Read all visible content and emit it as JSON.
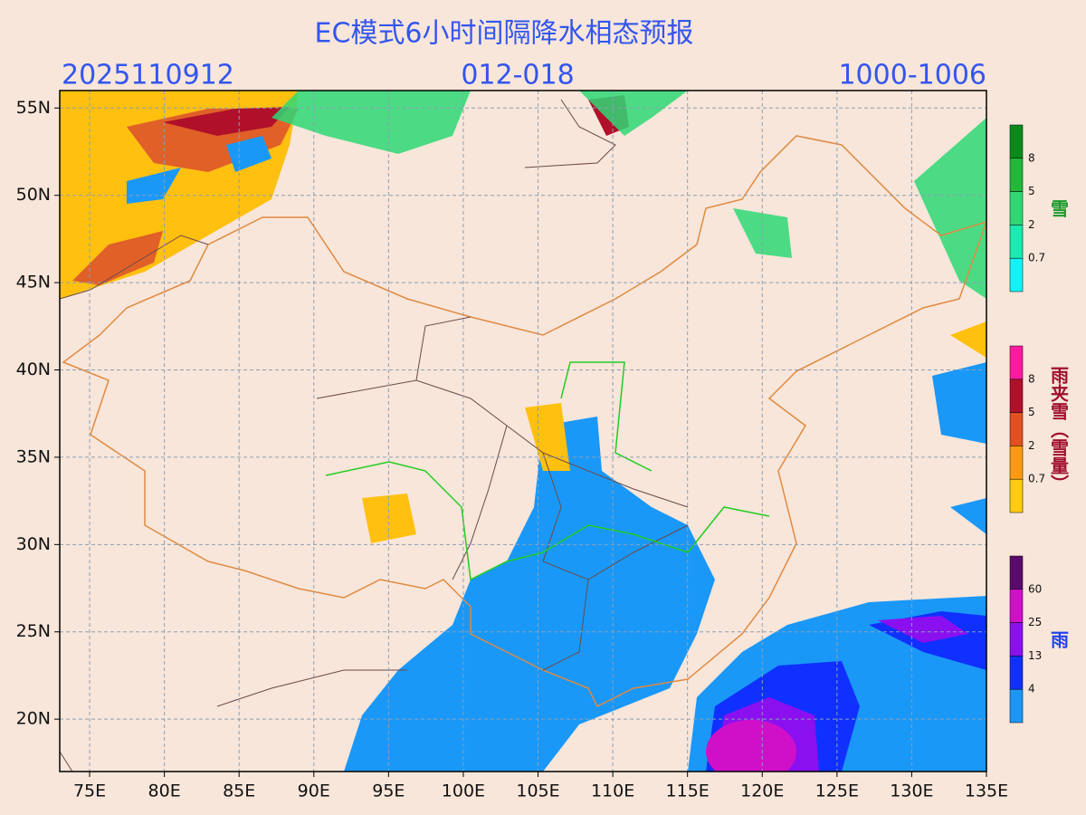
{
  "header": {
    "title": "EC模式6小时间隔降水相态预报",
    "init_time": "2025110912",
    "forecast_hours": "012-018",
    "pressure": "1000-1006"
  },
  "map": {
    "xlim": [
      73,
      135
    ],
    "ylim": [
      17,
      56
    ],
    "lon_ticks": [
      {
        "value": 75,
        "label": "75E"
      },
      {
        "value": 80,
        "label": "80E"
      },
      {
        "value": 85,
        "label": "85E"
      },
      {
        "value": 90,
        "label": "90E"
      },
      {
        "value": 95,
        "label": "95E"
      },
      {
        "value": 100,
        "label": "100E"
      },
      {
        "value": 105,
        "label": "105E"
      },
      {
        "value": 110,
        "label": "110E"
      },
      {
        "value": 115,
        "label": "115E"
      },
      {
        "value": 120,
        "label": "120E"
      },
      {
        "value": 125,
        "label": "125E"
      },
      {
        "value": 130,
        "label": "130E"
      },
      {
        "value": 135,
        "label": "135E"
      }
    ],
    "lat_ticks": [
      {
        "value": 20,
        "label": "20N"
      },
      {
        "value": 25,
        "label": "25N"
      },
      {
        "value": 30,
        "label": "30N"
      },
      {
        "value": 35,
        "label": "35N"
      },
      {
        "value": 40,
        "label": "40N"
      },
      {
        "value": 45,
        "label": "45N"
      },
      {
        "value": 50,
        "label": "50N"
      },
      {
        "value": 55,
        "label": "55N"
      }
    ]
  },
  "legends": [
    {
      "label": "雪",
      "label_color": "#1a9a2a",
      "levels": [
        8,
        5,
        2,
        0.7
      ],
      "colors": [
        "#0a8a1a",
        "#22b83a",
        "#2ed874",
        "#18ecb0",
        "#10f4f8"
      ]
    },
    {
      "label": "雨夹雪（雪量）",
      "label_color": "#a01030",
      "levels": [
        8,
        5,
        2,
        0.7
      ],
      "colors": [
        "#ff1aa0",
        "#b0102a",
        "#e05020",
        "#ff9a10",
        "#ffcc10"
      ]
    },
    {
      "label": "雨",
      "label_color": "#2244ee",
      "levels": [
        60,
        25,
        13,
        4
      ],
      "colors": [
        "#5a0a6a",
        "#d010c8",
        "#8a10f0",
        "#1030ff",
        "#1a98f8"
      ]
    }
  ]
}
